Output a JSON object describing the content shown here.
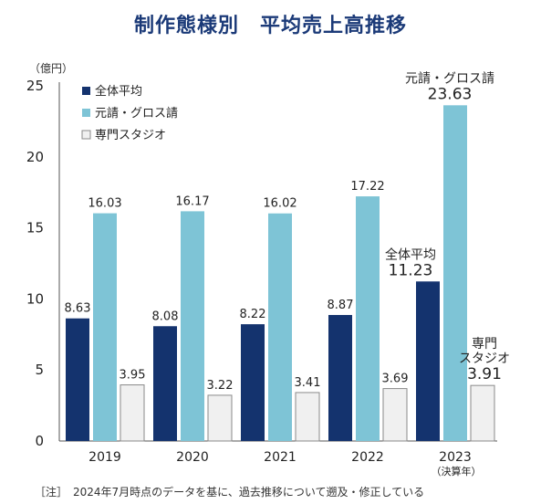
{
  "chart_data": {
    "type": "bar",
    "title": "制作態様別　平均売上高推移",
    "ylabel": "（億円）",
    "ylim": [
      0,
      25
    ],
    "yticks": [
      0,
      5,
      10,
      15,
      20,
      25
    ],
    "categories": [
      "2019",
      "2020",
      "2021",
      "2022",
      "2023"
    ],
    "category_note": "（決算年）",
    "series": [
      {
        "name": "全体平均",
        "color": "#14336e",
        "values": [
          8.63,
          8.08,
          8.22,
          8.87,
          11.23
        ]
      },
      {
        "name": "元請・グロス請",
        "color": "#7ec4d6",
        "values": [
          16.03,
          16.17,
          16.02,
          17.22,
          23.63
        ]
      },
      {
        "name": "専門スタジオ",
        "color": "#f0f0f0",
        "values": [
          3.95,
          3.22,
          3.41,
          3.69,
          3.91
        ]
      }
    ],
    "callouts": [
      {
        "lines": [
          "全体平均"
        ],
        "value": "11.23"
      },
      {
        "lines": [
          "元請・グロス請"
        ],
        "value": "23.63"
      },
      {
        "lines": [
          "専門",
          "スタジオ"
        ],
        "value": "3.91"
      }
    ],
    "legend_position": "top-left",
    "grid": false
  },
  "footnote": "［注］　2024年7月時点のデータを基に、過去推移について遡及・修正している"
}
